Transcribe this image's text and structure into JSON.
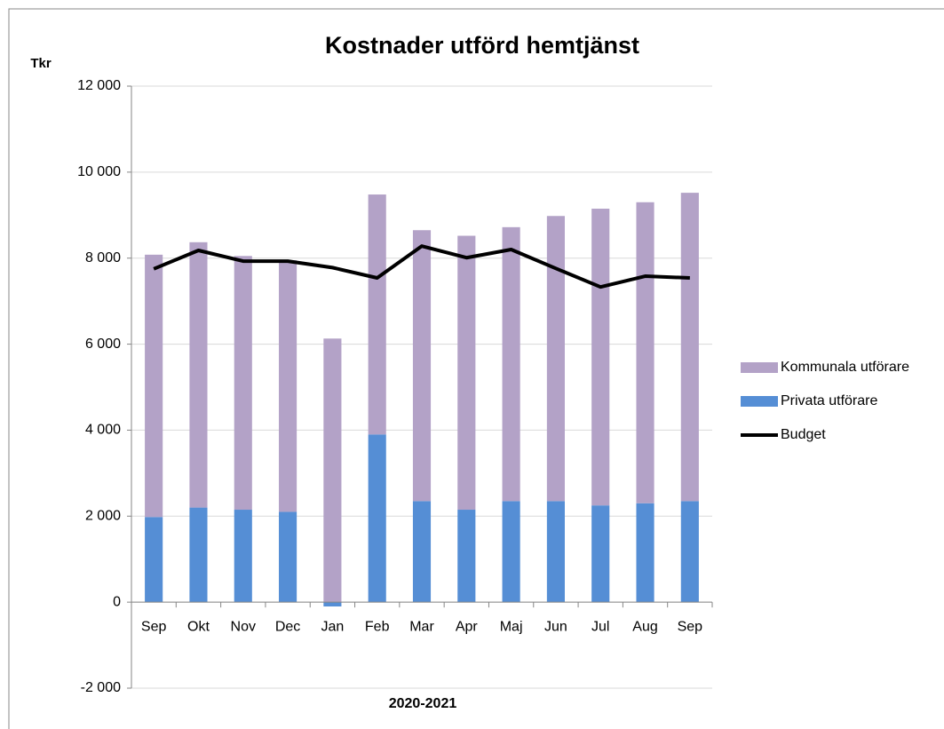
{
  "chart_data": {
    "type": "bar",
    "stacked": true,
    "title": "Kostnader utförd hemtjänst",
    "y_label": "Tkr",
    "x_label": "2020-2021",
    "categories": [
      "Sep",
      "Okt",
      "Nov",
      "Dec",
      "Jan",
      "Feb",
      "Mar",
      "Apr",
      "Maj",
      "Jun",
      "Jul",
      "Aug",
      "Sep"
    ],
    "series": [
      {
        "name": "Privata utförare",
        "type": "bar",
        "color": "#558ed5",
        "values": [
          1980,
          2200,
          2150,
          2100,
          -100,
          3900,
          2350,
          2150,
          2350,
          2350,
          2250,
          2300,
          2350
        ]
      },
      {
        "name": "Kommunala utförare",
        "type": "bar",
        "color": "#b3a2c7",
        "values": [
          6100,
          6170,
          5900,
          5850,
          6130,
          5580,
          6300,
          6370,
          6370,
          6630,
          6900,
          7000,
          7170
        ]
      },
      {
        "name": "Budget",
        "type": "line",
        "color": "#000000",
        "values": [
          7750,
          8180,
          7930,
          7930,
          7780,
          7540,
          8280,
          8010,
          8200,
          7760,
          7330,
          7580,
          7540
        ]
      }
    ],
    "ylim": [
      -2000,
      12000
    ],
    "yticks": [
      {
        "value": -2000,
        "label": "-2 000"
      },
      0,
      {
        "value": 2000,
        "label": "2 000"
      },
      {
        "value": 4000,
        "label": "4 000"
      },
      {
        "value": 6000,
        "label": "6 000"
      },
      {
        "value": 8000,
        "label": "8 000"
      },
      {
        "value": 10000,
        "label": "10 000"
      },
      {
        "value": 12000,
        "label": "12 000"
      }
    ],
    "grid": true,
    "legend": "right"
  }
}
